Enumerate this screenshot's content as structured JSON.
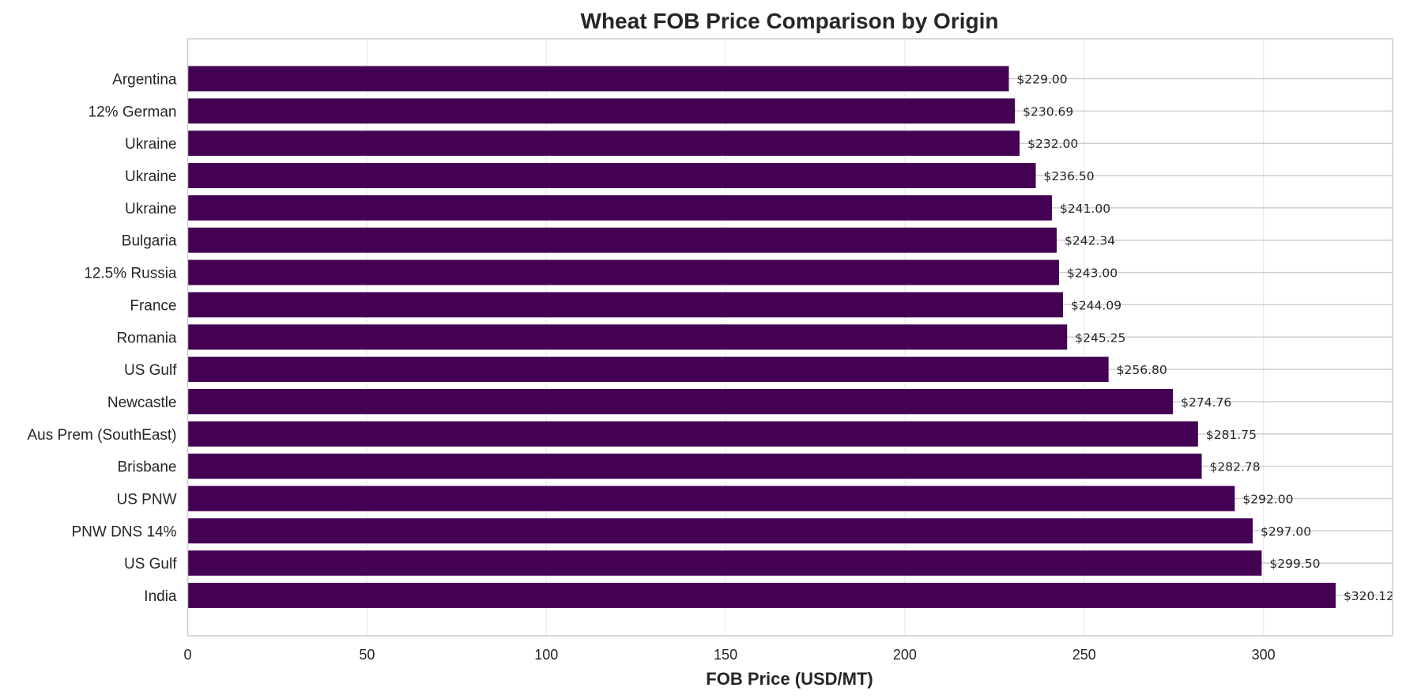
{
  "chart_data": {
    "type": "bar",
    "orientation": "horizontal",
    "title": "Wheat FOB Price Comparison by Origin",
    "xlabel": "FOB Price (USD/MT)",
    "ylabel": "",
    "xlim": [
      0,
      336
    ],
    "xticks": [
      0,
      50,
      100,
      150,
      200,
      250,
      300
    ],
    "grid": true,
    "bar_color": "#440154",
    "categories": [
      "Argentina",
      "12% German",
      "Ukraine",
      "Ukraine",
      "Ukraine",
      "Bulgaria",
      "12.5% Russia",
      "France",
      "Romania",
      "US Gulf",
      "Newcastle",
      "Aus Prem (SouthEast)",
      "Brisbane",
      "US PNW",
      "PNW DNS 14%",
      "US Gulf",
      "India"
    ],
    "values": [
      229.0,
      230.69,
      232.0,
      236.5,
      241.0,
      242.34,
      243.0,
      244.09,
      245.25,
      256.8,
      274.76,
      281.75,
      282.78,
      292.0,
      297.0,
      299.5,
      320.12
    ],
    "data_labels": [
      "$229.00",
      "$230.69",
      "$232.00",
      "$236.50",
      "$241.00",
      "$242.34",
      "$243.00",
      "$244.09",
      "$245.25",
      "$256.80",
      "$274.76",
      "$281.75",
      "$282.78",
      "$292.00",
      "$297.00",
      "$299.50",
      "$320.12"
    ]
  }
}
